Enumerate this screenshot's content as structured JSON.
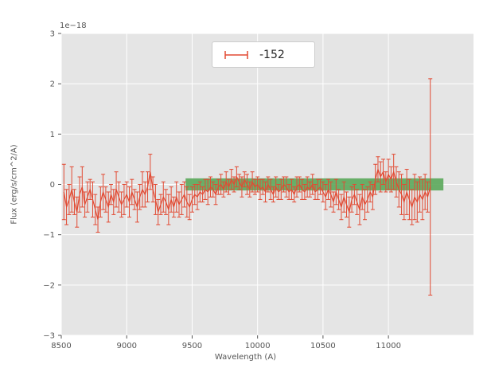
{
  "figure": {
    "axes_bg": "#e5e5e5",
    "grid_color": "#ffffff",
    "tick_color": "#555555",
    "line_color": "#e24a33",
    "band_color": "#5aa75a",
    "legend_border": "#cccccc"
  },
  "axes": {
    "xlabel": "Wavelength (A)",
    "ylabel": "Flux (erg/s/cm^2/A)",
    "offset_label": "1e−18",
    "xlim": [
      8500,
      11650
    ],
    "ylim": [
      -3,
      3
    ],
    "xticks": [
      8500,
      9000,
      9500,
      10000,
      10500,
      11000
    ],
    "yticks": [
      -3,
      -2,
      -1,
      0,
      1,
      2,
      3
    ]
  },
  "legend": {
    "label": "-152"
  },
  "chart_data": {
    "type": "line",
    "title": "",
    "xlabel": "Wavelength (A)",
    "ylabel": "Flux (erg/s/cm^2/A)",
    "y_offset_label": "1e-18",
    "xlim": [
      8500,
      11650
    ],
    "ylim": [
      -3,
      3
    ],
    "grid": true,
    "legend_position": "upper center",
    "band": {
      "x0": 9450,
      "x1": 11420,
      "y0": -0.12,
      "y1": 0.12
    },
    "series": [
      {
        "name": "-152",
        "x": [
          8520,
          8540,
          8560,
          8580,
          8600,
          8620,
          8640,
          8660,
          8680,
          8700,
          8720,
          8740,
          8760,
          8780,
          8800,
          8820,
          8840,
          8860,
          8880,
          8900,
          8920,
          8940,
          8960,
          8980,
          9000,
          9020,
          9040,
          9060,
          9080,
          9100,
          9120,
          9140,
          9160,
          9180,
          9200,
          9220,
          9240,
          9260,
          9280,
          9300,
          9320,
          9340,
          9360,
          9380,
          9400,
          9420,
          9440,
          9460,
          9480,
          9500,
          9520,
          9540,
          9560,
          9580,
          9600,
          9620,
          9640,
          9660,
          9680,
          9700,
          9720,
          9740,
          9760,
          9780,
          9800,
          9820,
          9840,
          9860,
          9880,
          9900,
          9920,
          9940,
          9960,
          9980,
          10000,
          10020,
          10040,
          10060,
          10080,
          10100,
          10120,
          10140,
          10160,
          10180,
          10200,
          10220,
          10240,
          10260,
          10280,
          10300,
          10320,
          10340,
          10360,
          10380,
          10400,
          10420,
          10440,
          10460,
          10480,
          10500,
          10520,
          10540,
          10560,
          10580,
          10600,
          10620,
          10640,
          10660,
          10680,
          10700,
          10720,
          10740,
          10760,
          10780,
          10800,
          10820,
          10840,
          10860,
          10880,
          10900,
          10920,
          10940,
          10960,
          10980,
          11000,
          11020,
          11040,
          11060,
          11080,
          11100,
          11120,
          11140,
          11160,
          11180,
          11200,
          11220,
          11240,
          11260,
          11280,
          11300,
          11320
        ],
        "y": [
          -0.15,
          -0.45,
          -0.3,
          -0.1,
          -0.35,
          -0.55,
          -0.2,
          -0.05,
          -0.4,
          -0.25,
          -0.1,
          -0.3,
          -0.5,
          -0.7,
          -0.35,
          -0.15,
          -0.3,
          -0.45,
          -0.2,
          -0.35,
          -0.1,
          -0.25,
          -0.4,
          -0.3,
          -0.2,
          -0.35,
          -0.15,
          -0.3,
          -0.45,
          -0.25,
          -0.1,
          -0.2,
          -0.05,
          0.25,
          -0.1,
          -0.3,
          -0.55,
          -0.4,
          -0.25,
          -0.35,
          -0.5,
          -0.3,
          -0.45,
          -0.25,
          -0.4,
          -0.3,
          -0.2,
          -0.35,
          -0.45,
          -0.3,
          -0.2,
          -0.25,
          -0.15,
          -0.2,
          -0.1,
          -0.15,
          -0.05,
          -0.1,
          -0.2,
          -0.05,
          0.0,
          -0.1,
          0.05,
          -0.05,
          0.1,
          0.0,
          0.15,
          0.05,
          -0.05,
          0.1,
          0.0,
          -0.1,
          0.05,
          -0.05,
          0.0,
          -0.1,
          -0.05,
          -0.15,
          0.0,
          -0.1,
          -0.2,
          -0.05,
          -0.15,
          -0.1,
          0.0,
          -0.05,
          -0.15,
          -0.1,
          -0.2,
          -0.05,
          0.0,
          -0.1,
          -0.15,
          -0.05,
          -0.1,
          0.0,
          -0.15,
          -0.1,
          -0.05,
          -0.15,
          -0.25,
          -0.1,
          -0.2,
          -0.35,
          -0.15,
          -0.3,
          -0.45,
          -0.25,
          -0.4,
          -0.55,
          -0.3,
          -0.2,
          -0.35,
          -0.5,
          -0.25,
          -0.4,
          -0.3,
          -0.15,
          -0.25,
          0.1,
          0.3,
          0.15,
          0.25,
          0.05,
          0.2,
          0.1,
          0.25,
          0.05,
          -0.1,
          -0.2,
          -0.35,
          -0.15,
          -0.3,
          -0.45,
          -0.25,
          -0.35,
          -0.2,
          -0.3,
          -0.15,
          -0.25,
          -0.05
        ],
        "yerr": [
          0.55,
          0.35,
          0.3,
          0.45,
          0.25,
          0.3,
          0.35,
          0.4,
          0.25,
          0.3,
          0.2,
          0.35,
          0.3,
          0.25,
          0.3,
          0.35,
          0.25,
          0.3,
          0.2,
          0.25,
          0.35,
          0.3,
          0.25,
          0.3,
          0.25,
          0.3,
          0.25,
          0.2,
          0.3,
          0.25,
          0.35,
          0.25,
          0.3,
          0.35,
          0.25,
          0.3,
          0.25,
          0.2,
          0.3,
          0.25,
          0.3,
          0.25,
          0.2,
          0.3,
          0.25,
          0.3,
          0.25,
          0.3,
          0.25,
          0.25,
          0.2,
          0.25,
          0.2,
          0.15,
          0.2,
          0.25,
          0.2,
          0.15,
          0.2,
          0.15,
          0.2,
          0.15,
          0.2,
          0.15,
          0.2,
          0.15,
          0.2,
          0.15,
          0.2,
          0.15,
          0.2,
          0.15,
          0.2,
          0.15,
          0.15,
          0.2,
          0.15,
          0.2,
          0.15,
          0.2,
          0.15,
          0.2,
          0.15,
          0.2,
          0.15,
          0.2,
          0.15,
          0.2,
          0.15,
          0.2,
          0.15,
          0.2,
          0.15,
          0.2,
          0.15,
          0.2,
          0.15,
          0.2,
          0.15,
          0.2,
          0.25,
          0.2,
          0.25,
          0.2,
          0.25,
          0.2,
          0.25,
          0.3,
          0.25,
          0.3,
          0.25,
          0.2,
          0.25,
          0.3,
          0.25,
          0.3,
          0.25,
          0.2,
          0.25,
          0.3,
          0.25,
          0.3,
          0.25,
          0.2,
          0.3,
          0.25,
          0.35,
          0.3,
          0.35,
          0.4,
          0.35,
          0.45,
          0.4,
          0.35,
          0.45,
          0.4,
          0.35,
          0.4,
          0.35,
          0.3,
          2.15
        ]
      }
    ]
  }
}
